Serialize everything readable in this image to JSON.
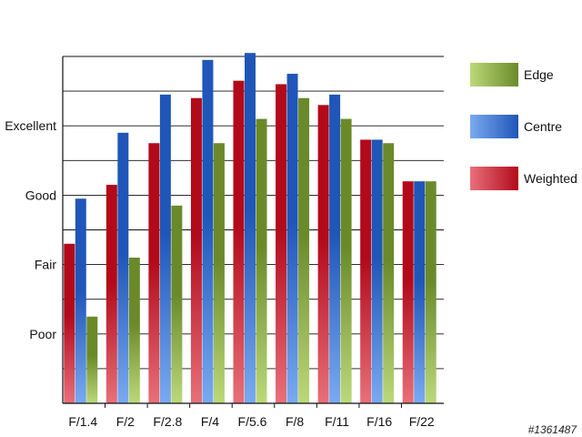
{
  "chart_data": {
    "type": "bar",
    "categories": [
      "F/1.4",
      "F/2",
      "F/2.8",
      "F/4",
      "F/5.6",
      "F/8",
      "F/11",
      "F/16",
      "F/22"
    ],
    "y_tick_labels": [
      {
        "label": "Poor",
        "value": 2
      },
      {
        "label": "Fair",
        "value": 4
      },
      {
        "label": "Good",
        "value": 6
      },
      {
        "label": "Excellent",
        "value": 8
      }
    ],
    "ylim": [
      0,
      10
    ],
    "grid": true,
    "legend_position": "right",
    "series": [
      {
        "name": "Weighted",
        "colors": [
          "#b20a1a",
          "#e8707a"
        ],
        "values": [
          4.6,
          6.3,
          7.5,
          8.8,
          9.3,
          9.2,
          8.6,
          7.6,
          6.4
        ]
      },
      {
        "name": "Centre",
        "colors": [
          "#1f56b8",
          "#7aaaf0"
        ],
        "values": [
          5.9,
          7.8,
          8.9,
          9.9,
          10.1,
          9.5,
          8.9,
          7.6,
          6.4
        ]
      },
      {
        "name": "Edge",
        "colors": [
          "#6a8a2a",
          "#bcd97a"
        ],
        "values": [
          2.5,
          4.2,
          5.7,
          7.5,
          8.2,
          8.8,
          8.2,
          7.5,
          6.4
        ]
      }
    ],
    "legend_order": [
      "Edge",
      "Centre",
      "Weighted"
    ]
  },
  "watermark": "#1361487"
}
